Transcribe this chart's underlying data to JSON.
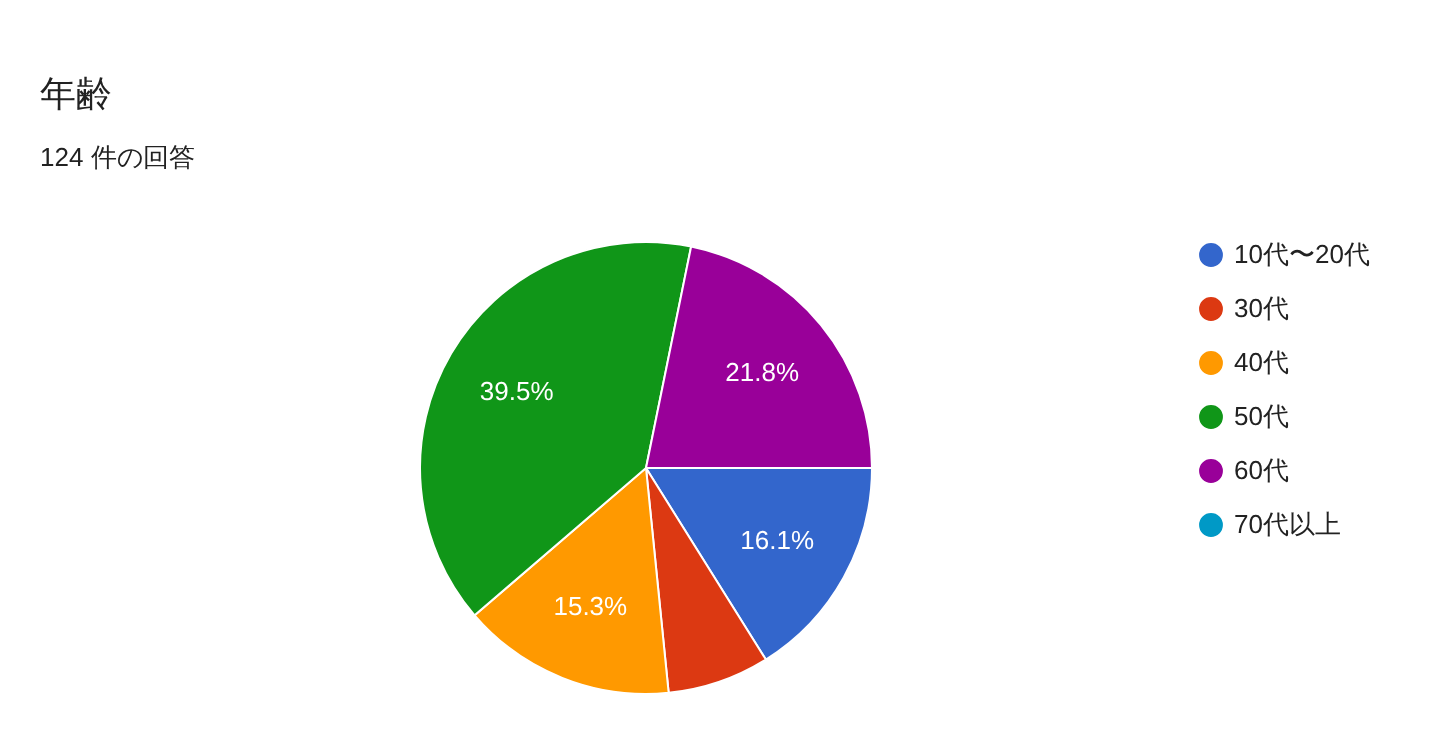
{
  "chart_data": {
    "type": "pie",
    "title": "年齢",
    "subtitle": "124 件の回答",
    "categories": [
      "10代〜20代",
      "30代",
      "40代",
      "50代",
      "60代",
      "70代以上"
    ],
    "values": [
      16.1,
      7.3,
      15.3,
      39.5,
      21.8,
      0
    ],
    "value_labels": [
      "16.1%",
      null,
      "15.3%",
      "39.5%",
      "21.8%",
      null
    ],
    "colors": [
      "#3366cc",
      "#dc3912",
      "#ff9900",
      "#109618",
      "#990099",
      "#0099c6"
    ],
    "legend": "right"
  }
}
